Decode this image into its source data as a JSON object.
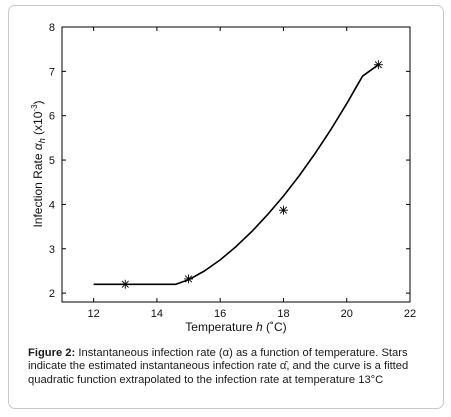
{
  "chart_data": {
    "type": "line",
    "xlabel_prefix": "Temperature ",
    "xlabel_var": "h",
    "xlabel_unit": " (˚C)",
    "ylabel_prefix": "Infection Rate ",
    "ylabel_var": "α",
    "ylabel_sub": "h",
    "ylabel_unit": " (x10",
    "ylabel_exp": "-3",
    "ylabel_close": ")",
    "xlim": [
      11,
      22
    ],
    "ylim": [
      1.8,
      8
    ],
    "xticks": [
      12,
      14,
      16,
      18,
      20,
      22
    ],
    "yticks": [
      2,
      3,
      4,
      5,
      6,
      7,
      8
    ],
    "series": [
      {
        "marker": "star",
        "x": [
          13,
          15,
          18,
          21
        ],
        "y": [
          2.2,
          2.32,
          3.87,
          7.15
        ]
      },
      {
        "marker": "none",
        "x": [
          12,
          12.5,
          13,
          13.5,
          14,
          14.3,
          14.6,
          15,
          15.5,
          16,
          16.5,
          17,
          17.5,
          18,
          18.5,
          19,
          19.5,
          20,
          20.5,
          21
        ],
        "y": [
          2.2,
          2.2,
          2.2,
          2.2,
          2.2,
          2.2,
          2.2,
          2.3,
          2.5,
          2.75,
          3.05,
          3.39,
          3.77,
          4.19,
          4.65,
          5.15,
          5.69,
          6.27,
          6.89,
          7.15
        ]
      }
    ]
  },
  "caption": {
    "label": "Figure 2:",
    "text": " Instantaneous infection rate (α) as a function of temperature. Stars indicate the estimated instantaneous infection rate α̂, and the curve is a fitted quadratic function extrapolated to the infection rate at temperature 13°C"
  }
}
